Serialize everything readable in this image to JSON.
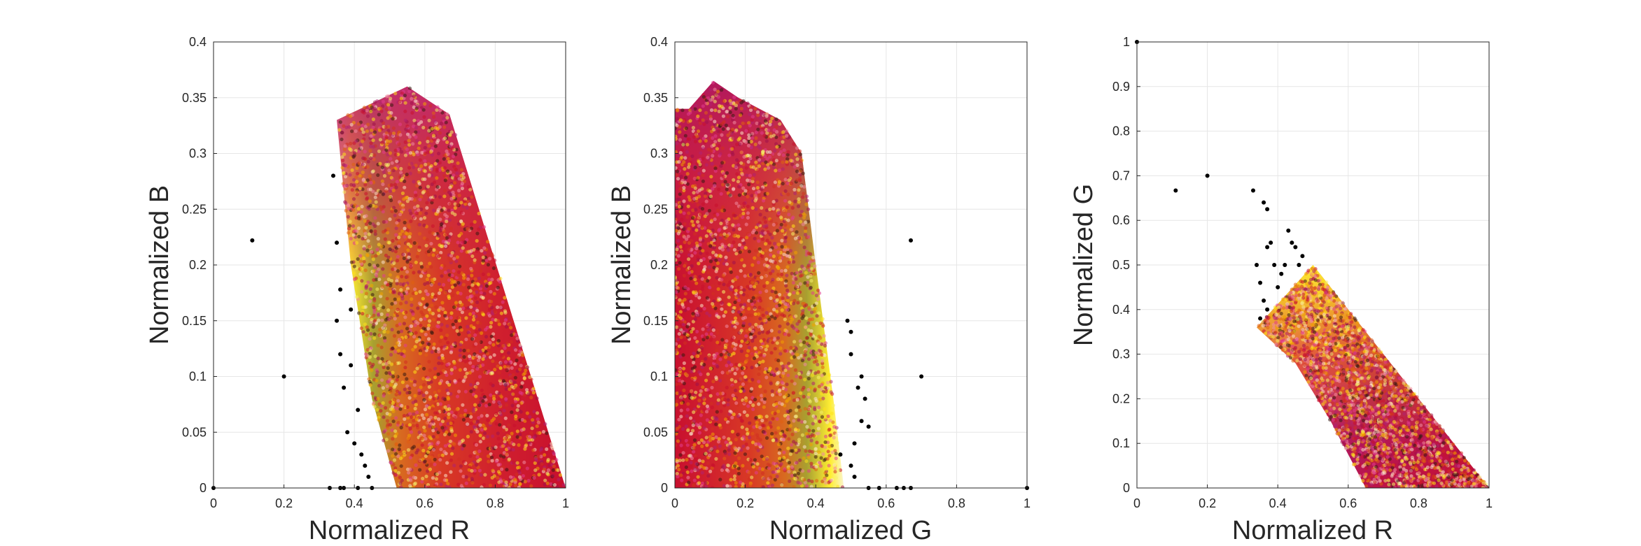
{
  "colors": {
    "background": "#ffffff",
    "grid": "#e6e6e6",
    "axis": "#262626",
    "outlier": "#000000",
    "cloud": [
      "#f5f06a",
      "#ffe11a",
      "#f0a000",
      "#e06010",
      "#d23020",
      "#c8102e",
      "#a0104a",
      "#b02070",
      "#e23d8e",
      "#f08aa0",
      "#fbe1c8",
      "#3a1a10"
    ]
  },
  "chart_data": [
    {
      "type": "scatter",
      "xlabel": "Normalized R",
      "ylabel": "Normalized B",
      "xlim": [
        0,
        1
      ],
      "ylim": [
        0,
        0.4
      ],
      "xticks": [
        "0",
        "0.2",
        "0.4",
        "0.6",
        "0.8",
        "1"
      ],
      "yticks": [
        "0",
        "0.05",
        "0.1",
        "0.15",
        "0.2",
        "0.25",
        "0.3",
        "0.35",
        "0.4"
      ],
      "grid": true,
      "dense_region": [
        [
          0.52,
          0.0
        ],
        [
          0.45,
          0.08
        ],
        [
          0.39,
          0.2
        ],
        [
          0.35,
          0.33
        ],
        [
          0.45,
          0.345
        ],
        [
          0.55,
          0.36
        ],
        [
          0.67,
          0.335
        ],
        [
          1.0,
          0.0
        ]
      ],
      "outliers": [
        [
          0.0,
          0.0
        ],
        [
          0.11,
          0.222
        ],
        [
          0.2,
          0.1
        ],
        [
          0.34,
          0.28
        ],
        [
          0.35,
          0.22
        ],
        [
          0.35,
          0.15
        ],
        [
          0.36,
          0.12
        ],
        [
          0.36,
          0.178
        ],
        [
          0.37,
          0.09
        ],
        [
          0.38,
          0.05
        ],
        [
          0.39,
          0.16
        ],
        [
          0.39,
          0.11
        ],
        [
          0.4,
          0.04
        ],
        [
          0.41,
          0.07
        ],
        [
          0.42,
          0.03
        ],
        [
          0.43,
          0.02
        ],
        [
          0.44,
          0.01
        ],
        [
          0.33,
          0.0
        ],
        [
          0.36,
          0.0
        ],
        [
          0.37,
          0.0
        ],
        [
          0.41,
          0.0
        ],
        [
          0.45,
          0.0
        ]
      ]
    },
    {
      "type": "scatter",
      "xlabel": "Normalized G",
      "ylabel": "Normalized B",
      "xlim": [
        0,
        1
      ],
      "ylim": [
        0,
        0.4
      ],
      "xticks": [
        "0",
        "0.2",
        "0.4",
        "0.6",
        "0.8",
        "1"
      ],
      "yticks": [
        "0",
        "0.05",
        "0.1",
        "0.15",
        "0.2",
        "0.25",
        "0.3",
        "0.35",
        "0.4"
      ],
      "grid": true,
      "dense_region": [
        [
          0.0,
          0.0
        ],
        [
          0.48,
          0.0
        ],
        [
          0.45,
          0.08
        ],
        [
          0.4,
          0.2
        ],
        [
          0.36,
          0.3
        ],
        [
          0.3,
          0.33
        ],
        [
          0.18,
          0.35
        ],
        [
          0.11,
          0.365
        ],
        [
          0.04,
          0.34
        ],
        [
          0.0,
          0.34
        ]
      ],
      "outliers": [
        [
          1.0,
          0.0
        ],
        [
          0.67,
          0.222
        ],
        [
          0.7,
          0.1
        ],
        [
          0.49,
          0.15
        ],
        [
          0.5,
          0.12
        ],
        [
          0.52,
          0.09
        ],
        [
          0.53,
          0.06
        ],
        [
          0.55,
          0.055
        ],
        [
          0.47,
          0.03
        ],
        [
          0.5,
          0.02
        ],
        [
          0.51,
          0.01
        ],
        [
          0.55,
          0.0
        ],
        [
          0.58,
          0.0
        ],
        [
          0.63,
          0.0
        ],
        [
          0.65,
          0.0
        ],
        [
          0.67,
          0.0
        ],
        [
          0.5,
          0.14
        ],
        [
          0.53,
          0.1
        ],
        [
          0.54,
          0.08
        ],
        [
          0.51,
          0.04
        ]
      ]
    },
    {
      "type": "scatter",
      "xlabel": "Normalized R",
      "ylabel": "Normalized G",
      "xlim": [
        0,
        1
      ],
      "ylim": [
        0,
        1
      ],
      "xticks": [
        "0",
        "0.2",
        "0.4",
        "0.6",
        "0.8",
        "1"
      ],
      "yticks": [
        "0",
        "0.1",
        "0.2",
        "0.3",
        "0.4",
        "0.5",
        "0.6",
        "0.7",
        "0.8",
        "0.9",
        "1"
      ],
      "grid": true,
      "dense_region": [
        [
          0.34,
          0.36
        ],
        [
          0.5,
          0.5
        ],
        [
          1.0,
          0.0
        ],
        [
          0.65,
          0.0
        ],
        [
          0.55,
          0.15
        ],
        [
          0.45,
          0.28
        ]
      ],
      "outliers": [
        [
          0.0,
          1.0
        ],
        [
          0.11,
          0.667
        ],
        [
          0.2,
          0.7
        ],
        [
          0.33,
          0.667
        ],
        [
          0.36,
          0.64
        ],
        [
          0.37,
          0.625
        ],
        [
          0.34,
          0.5
        ],
        [
          0.35,
          0.46
        ],
        [
          0.36,
          0.42
        ],
        [
          0.37,
          0.54
        ],
        [
          0.38,
          0.55
        ],
        [
          0.39,
          0.5
        ],
        [
          0.4,
          0.45
        ],
        [
          0.41,
          0.48
        ],
        [
          0.42,
          0.5
        ],
        [
          0.43,
          0.577
        ],
        [
          0.44,
          0.55
        ],
        [
          0.45,
          0.54
        ],
        [
          0.46,
          0.5
        ],
        [
          0.47,
          0.52
        ],
        [
          0.35,
          0.38
        ],
        [
          0.37,
          0.4
        ]
      ]
    }
  ]
}
